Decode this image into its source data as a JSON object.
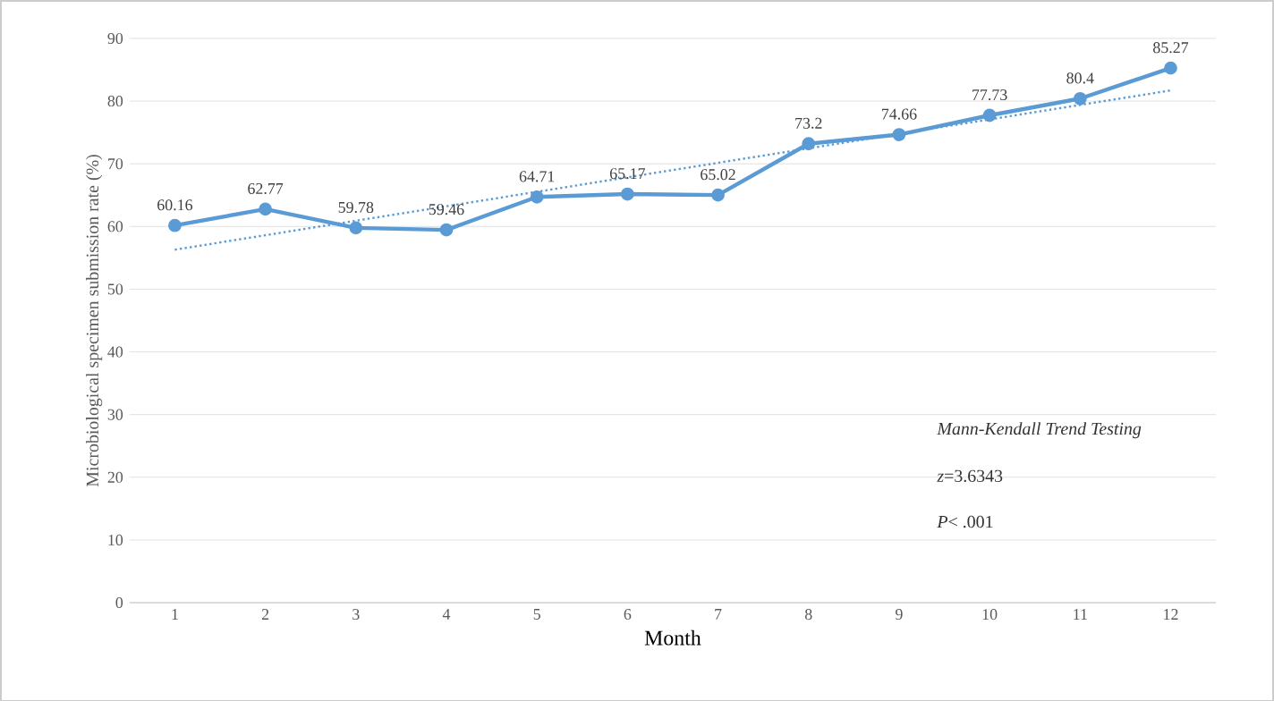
{
  "chart_data": {
    "type": "line",
    "xlabel": "Month",
    "ylabel": "Microbiological specimen submission rate (%)",
    "x": [
      1,
      2,
      3,
      4,
      5,
      6,
      7,
      8,
      9,
      10,
      11,
      12
    ],
    "xlim": [
      0.5,
      12.5
    ],
    "xticks": [
      1,
      2,
      3,
      4,
      5,
      6,
      7,
      8,
      9,
      10,
      11,
      12
    ],
    "ylim": [
      0,
      90
    ],
    "yticks": [
      0,
      10,
      20,
      30,
      40,
      50,
      60,
      70,
      80,
      90
    ],
    "grid": "y",
    "series": [
      {
        "color": "#5b9bd5",
        "marker": "circle",
        "line_style": "solid",
        "values": [
          60.16,
          62.77,
          59.78,
          59.46,
          64.71,
          65.17,
          65.02,
          73.2,
          74.66,
          77.73,
          80.4,
          85.27
        ],
        "value_labels": [
          "60.16",
          "62.77",
          "59.78",
          "59.46",
          "64.71",
          "65.17",
          "65.02",
          "73.2",
          "74.66",
          "77.73",
          "80.4",
          "85.27"
        ]
      },
      {
        "type": "line",
        "color": "#5b9bd5",
        "marker": "none",
        "line_style": "dotted",
        "x": [
          1,
          12
        ],
        "values": [
          56.3,
          81.7
        ]
      }
    ],
    "annotations": [
      "*Mann-Kendall Trend Testing*",
      "*z*=3.6343",
      "*P*< .001"
    ]
  }
}
